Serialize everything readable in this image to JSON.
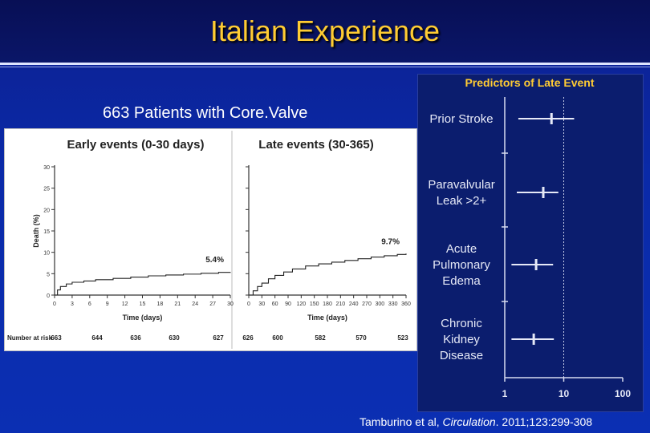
{
  "slide": {
    "title": "Italian Experience",
    "subtitle": "663 Patients with Core.Valve",
    "citation_author": "Tamburino et al, ",
    "citation_journal": "Circulation",
    "citation_rest": ". 2011;123:299-308"
  },
  "colors": {
    "title": "#ffcc33",
    "background": "#0b2fb3",
    "forest_panel": "#0b1d6e",
    "forest_title": "#ffcc33"
  },
  "chart_data": [
    {
      "type": "line",
      "title": "Early events (0-30 days)",
      "xlabel": "Time (days)",
      "ylabel": "Death (%)",
      "xlim": [
        0,
        30
      ],
      "ylim": [
        0,
        30
      ],
      "x_ticks": [
        "0",
        "3",
        "6",
        "9",
        "12",
        "15",
        "18",
        "21",
        "24",
        "27",
        "30"
      ],
      "y_ticks": [
        "0",
        "5",
        "10",
        "15",
        "20",
        "25",
        "30"
      ],
      "annotation": "5.4%",
      "x": [
        0,
        0.5,
        1,
        2,
        3,
        5,
        7,
        10,
        13,
        16,
        19,
        22,
        25,
        28,
        30
      ],
      "y": [
        0,
        1.2,
        2.0,
        2.6,
        3.0,
        3.3,
        3.6,
        3.9,
        4.2,
        4.5,
        4.7,
        4.9,
        5.1,
        5.3,
        5.4
      ],
      "risk_label": "Number at risk",
      "risk_values": [
        "663",
        "644",
        "636",
        "630",
        "627"
      ]
    },
    {
      "type": "line",
      "title": "Late events (30-365)",
      "xlabel": "Time (days)",
      "xlim": [
        0,
        360
      ],
      "ylim": [
        0,
        30
      ],
      "x_ticks": [
        "0",
        "30",
        "60",
        "90",
        "120",
        "150",
        "180",
        "210",
        "240",
        "270",
        "300",
        "330",
        "360"
      ],
      "annotation": "9.7%",
      "x": [
        0,
        10,
        20,
        30,
        45,
        60,
        80,
        100,
        130,
        160,
        190,
        220,
        250,
        280,
        310,
        340,
        360
      ],
      "y": [
        0,
        1.0,
        2.0,
        2.8,
        3.8,
        4.6,
        5.4,
        6.1,
        6.8,
        7.3,
        7.7,
        8.1,
        8.5,
        8.9,
        9.2,
        9.5,
        9.7
      ],
      "risk_values": [
        "626",
        "600",
        "582",
        "570",
        "523"
      ]
    },
    {
      "type": "scatter",
      "title": "Predictors of Late Event",
      "xscale": "log",
      "xlim": [
        1,
        100
      ],
      "x_ticks": [
        "1",
        "10",
        "100"
      ],
      "reference_lines": [
        1,
        10
      ],
      "categories": [
        "Prior Stroke",
        "Paravalvular Leak >2+",
        "Acute Pulmonary Edema",
        "Chronic Kidney Disease"
      ],
      "category_lines": [
        [
          "Prior Stroke"
        ],
        [
          "Paravalvular",
          "Leak >2+"
        ],
        [
          "Acute",
          "Pulmonary",
          "Edema"
        ],
        [
          "Chronic",
          "Kidney",
          "Disease"
        ]
      ],
      "estimates": [
        6.2,
        4.5,
        3.4,
        3.1
      ],
      "ci_low": [
        1.7,
        1.6,
        1.3,
        1.3
      ],
      "ci_high": [
        15.0,
        8.1,
        6.6,
        6.8
      ]
    }
  ]
}
